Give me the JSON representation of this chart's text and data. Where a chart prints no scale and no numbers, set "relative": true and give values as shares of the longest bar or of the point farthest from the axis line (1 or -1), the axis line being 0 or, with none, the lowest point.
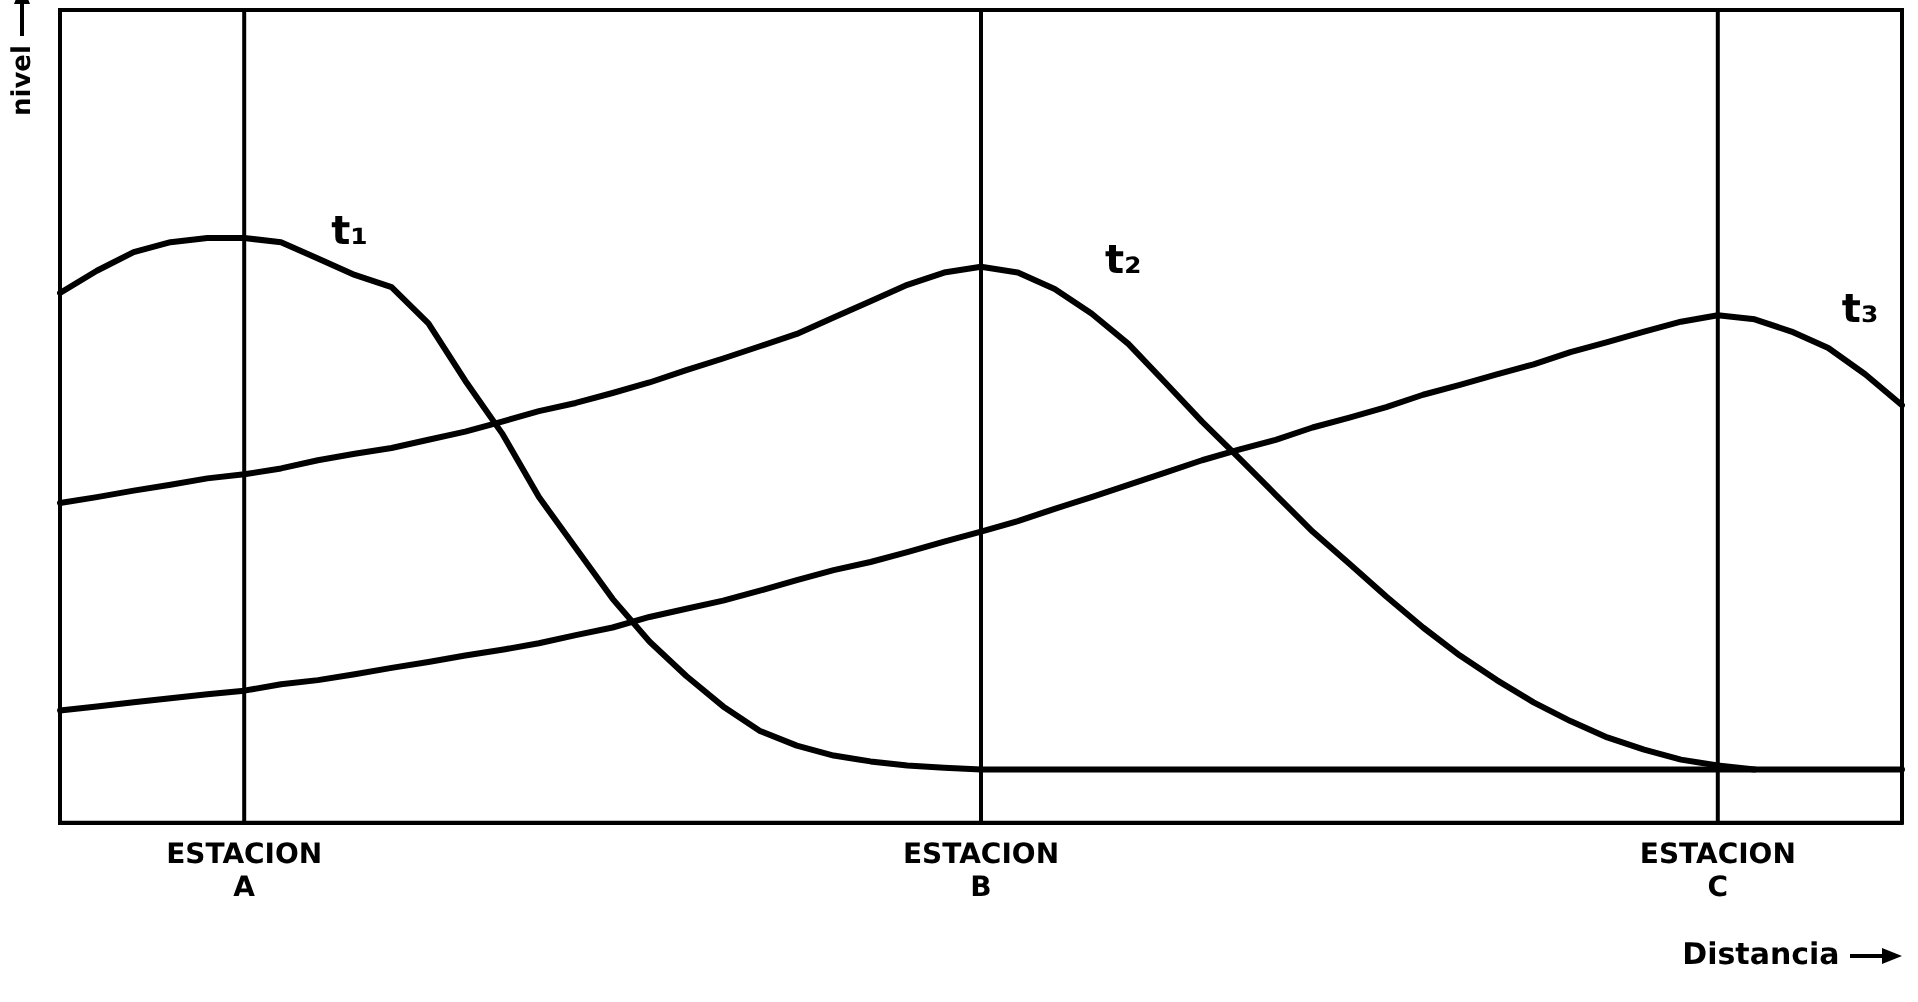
{
  "chart_data": {
    "type": "line",
    "relative": true,
    "xlabel": "Distancia",
    "ylabel": "nivel",
    "tick_labels": "x",
    "grid": false,
    "legend": false,
    "marker": "none",
    "line_style": "solid",
    "categories": [
      null,
      null,
      null,
      null,
      null,
      "ESTACION A",
      null,
      null,
      null,
      null,
      null,
      null,
      null,
      null,
      null,
      null,
      null,
      null,
      null,
      null,
      null,
      null,
      null,
      null,
      null,
      "ESTACION B",
      null,
      null,
      null,
      null,
      null,
      null,
      null,
      null,
      null,
      null,
      null,
      null,
      null,
      null,
      null,
      null,
      null,
      null,
      null,
      "ESTACION C",
      null,
      null,
      null,
      null,
      null
    ],
    "series": [
      {
        "name": "t₁",
        "color": "#000000",
        "values": [
          0.906,
          0.944,
          0.976,
          0.993,
          1,
          1,
          0.993,
          0.965,
          0.937,
          0.916,
          0.854,
          0.756,
          0.666,
          0.557,
          0.47,
          0.383,
          0.31,
          0.251,
          0.199,
          0.157,
          0.132,
          0.115,
          0.105,
          0.098,
          0.094,
          0.091,
          0.091,
          0.091,
          0.091,
          0.091,
          0.091,
          0.091,
          0.091,
          0.091,
          0.091,
          0.091,
          0.091,
          0.091,
          0.091,
          0.091,
          0.091,
          0.091,
          0.091,
          0.091,
          0.091,
          0.091,
          0.091,
          0.091,
          0.091,
          0.091,
          0.091
        ]
      },
      {
        "name": "t₂",
        "color": "#000000",
        "values": [
          0.547,
          0.557,
          0.568,
          0.578,
          0.589,
          0.596,
          0.606,
          0.62,
          0.631,
          0.641,
          0.655,
          0.669,
          0.686,
          0.704,
          0.718,
          0.735,
          0.753,
          0.774,
          0.794,
          0.815,
          0.836,
          0.864,
          0.892,
          0.92,
          0.941,
          0.951,
          0.941,
          0.913,
          0.871,
          0.819,
          0.753,
          0.686,
          0.624,
          0.561,
          0.498,
          0.443,
          0.387,
          0.334,
          0.286,
          0.244,
          0.206,
          0.174,
          0.146,
          0.125,
          0.108,
          0.098,
          0.091,
          null,
          null,
          null,
          null
        ]
      },
      {
        "name": "t₃",
        "color": "#000000",
        "values": [
          0.192,
          0.199,
          0.206,
          0.213,
          0.22,
          0.226,
          0.237,
          0.244,
          0.254,
          0.265,
          0.275,
          0.286,
          0.296,
          0.307,
          0.321,
          0.334,
          0.352,
          0.366,
          0.38,
          0.397,
          0.415,
          0.432,
          0.446,
          0.463,
          0.481,
          0.498,
          0.516,
          0.537,
          0.557,
          0.578,
          0.599,
          0.62,
          0.638,
          0.655,
          0.676,
          0.693,
          0.711,
          0.732,
          0.749,
          0.767,
          0.784,
          0.805,
          0.822,
          0.84,
          0.857,
          0.868,
          0.861,
          0.84,
          0.812,
          0.767,
          0.714
        ]
      }
    ],
    "ref_lines": [
      {
        "axis": "x",
        "value": "ESTACION A"
      },
      {
        "axis": "x",
        "value": "ESTACION B"
      },
      {
        "axis": "x",
        "value": "ESTACION C"
      }
    ]
  }
}
